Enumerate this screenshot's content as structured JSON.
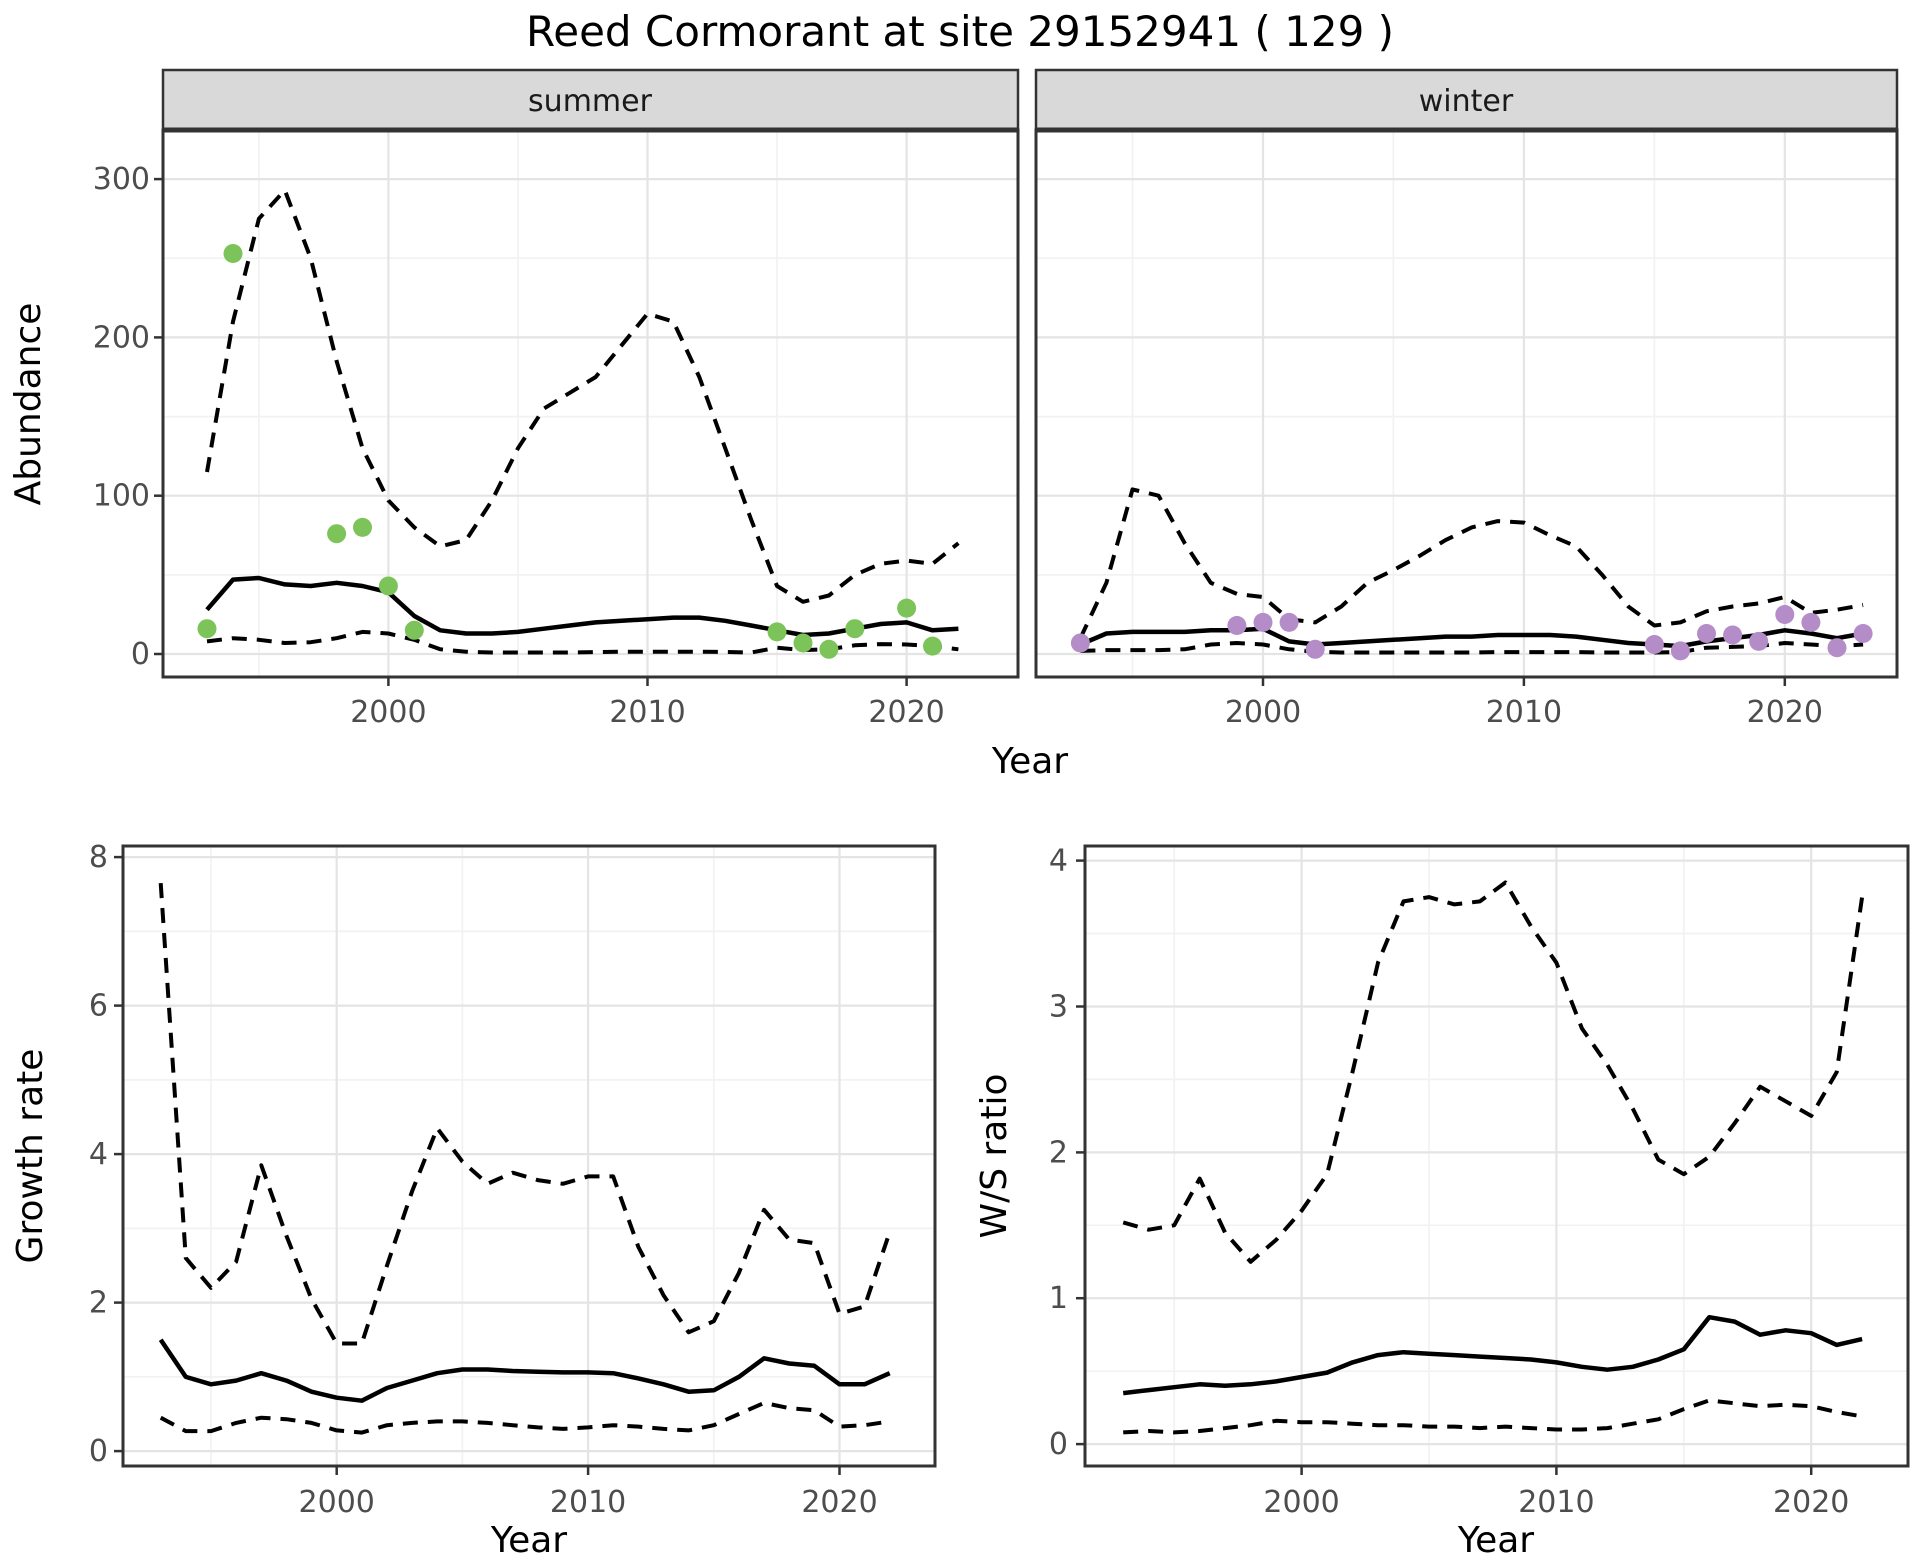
{
  "title": "Reed Cormorant at site 29152941 ( 129 )",
  "colors": {
    "summer_points": "#7cc45a",
    "winter_points": "#b48cc8",
    "line": "#000000",
    "grid_major": "#e4e4e4",
    "grid_minor": "#f2f2f2",
    "strip_bg": "#d9d9d9",
    "border": "#333333",
    "tick_label": "#4d4d4d"
  },
  "chart_data": [
    {
      "id": "abundance_summer",
      "type": "line",
      "facet_label": "summer",
      "ylabel": "Abundance",
      "xlabel": "Year",
      "xlim": [
        1991.3,
        2024.3
      ],
      "ylim": [
        -14.5,
        331
      ],
      "xticks": [
        2000,
        2010,
        2020
      ],
      "xminor": [
        1995,
        2005,
        2015
      ],
      "yticks": [
        0,
        100,
        200,
        300
      ],
      "yminor": [
        50,
        150,
        250
      ],
      "grid": true,
      "legend": "none",
      "x": [
        1993,
        1994,
        1995,
        1996,
        1997,
        1998,
        1999,
        2000,
        2001,
        2002,
        2003,
        2004,
        2005,
        2006,
        2007,
        2008,
        2009,
        2010,
        2011,
        2012,
        2013,
        2014,
        2015,
        2016,
        2017,
        2018,
        2019,
        2020,
        2021,
        2022
      ],
      "series": [
        {
          "name": "mean",
          "style": "solid",
          "values": [
            28,
            47,
            48,
            44,
            43,
            45,
            43,
            39,
            24,
            15,
            13,
            13,
            14,
            16,
            18,
            20,
            21,
            22,
            23,
            23,
            21,
            18,
            15,
            12,
            13,
            16,
            19,
            20,
            15,
            16
          ]
        },
        {
          "name": "upper_ci",
          "style": "dashed",
          "values": [
            115,
            210,
            275,
            293,
            250,
            185,
            130,
            97,
            80,
            68,
            72,
            97,
            130,
            155,
            165,
            175,
            195,
            215,
            210,
            175,
            130,
            85,
            43,
            33,
            37,
            50,
            57,
            59,
            57,
            70
          ]
        },
        {
          "name": "lower_ci",
          "style": "dashed",
          "values": [
            8,
            10,
            9,
            7,
            7.5,
            10,
            14,
            13,
            9,
            3,
            1.5,
            1,
            1,
            1,
            1,
            1.2,
            1.5,
            1.5,
            1.5,
            1.5,
            1.3,
            1,
            4,
            2.5,
            3,
            5.5,
            6.3,
            6,
            5,
            3
          ]
        }
      ],
      "points": {
        "name": "summer observed counts",
        "color": "#7cc45a",
        "data": [
          [
            1993,
            16
          ],
          [
            1994,
            253
          ],
          [
            1998,
            76
          ],
          [
            1999,
            80
          ],
          [
            2000,
            43
          ],
          [
            2001,
            15
          ],
          [
            2015,
            14
          ],
          [
            2016,
            7
          ],
          [
            2017,
            3
          ],
          [
            2018,
            16
          ],
          [
            2020,
            29
          ],
          [
            2021,
            5
          ]
        ]
      }
    },
    {
      "id": "abundance_winter",
      "type": "line",
      "facet_label": "winter",
      "ylabel": "Abundance",
      "xlabel": "Year",
      "xlim": [
        1991.3,
        2024.3
      ],
      "ylim": [
        -14.5,
        331
      ],
      "xticks": [
        2000,
        2010,
        2020
      ],
      "xminor": [
        1995,
        2005,
        2015
      ],
      "yticks": [
        0,
        100,
        200,
        300
      ],
      "yminor": [
        50,
        150,
        250
      ],
      "grid": true,
      "legend": "none",
      "x": [
        1993,
        1994,
        1995,
        1996,
        1997,
        1998,
        1999,
        2000,
        2001,
        2002,
        2003,
        2004,
        2005,
        2006,
        2007,
        2008,
        2009,
        2010,
        2011,
        2012,
        2013,
        2014,
        2015,
        2016,
        2017,
        2018,
        2019,
        2020,
        2021,
        2022,
        2023
      ],
      "series": [
        {
          "name": "mean",
          "style": "solid",
          "values": [
            6,
            13,
            14,
            14,
            14,
            15,
            15,
            16,
            8,
            6,
            7,
            8,
            9,
            10,
            11,
            11,
            12,
            12,
            12,
            11,
            9,
            7,
            6,
            5,
            8,
            10,
            12,
            15,
            13,
            10,
            13
          ]
        },
        {
          "name": "upper_ci",
          "style": "dashed",
          "values": [
            10,
            45,
            104,
            100,
            70,
            45,
            38,
            36,
            22,
            20,
            30,
            45,
            53,
            62,
            72,
            80,
            84,
            83,
            75,
            68,
            50,
            30,
            18,
            20,
            27,
            30,
            32,
            36,
            26,
            28,
            31
          ]
        },
        {
          "name": "lower_ci",
          "style": "dashed",
          "values": [
            2,
            2.5,
            2.5,
            2.5,
            3,
            6,
            7,
            6,
            3,
            1.5,
            1,
            1,
            1,
            1,
            1,
            1,
            1.2,
            1.2,
            1.2,
            1.2,
            1,
            1,
            1,
            1.2,
            4,
            4.5,
            5,
            7,
            6,
            5,
            6
          ]
        }
      ],
      "points": {
        "name": "winter observed counts",
        "color": "#b48cc8",
        "data": [
          [
            1993,
            7
          ],
          [
            1999,
            18
          ],
          [
            2000,
            20
          ],
          [
            2001,
            20
          ],
          [
            2002,
            3
          ],
          [
            2015,
            6
          ],
          [
            2016,
            2
          ],
          [
            2017,
            13
          ],
          [
            2018,
            12
          ],
          [
            2019,
            8
          ],
          [
            2020,
            25
          ],
          [
            2021,
            20
          ],
          [
            2022,
            4
          ],
          [
            2023,
            13
          ]
        ]
      }
    },
    {
      "id": "growth_rate",
      "type": "line",
      "facet_label": "",
      "ylabel": "Growth rate",
      "xlabel": "Year",
      "xlim": [
        1991.5,
        2023.8
      ],
      "ylim": [
        -0.2,
        8.15
      ],
      "xticks": [
        2000,
        2010,
        2020
      ],
      "xminor": [
        1995,
        2005,
        2015
      ],
      "yticks": [
        0,
        2,
        4,
        6,
        8
      ],
      "yminor": [
        1,
        3,
        5,
        7
      ],
      "grid": true,
      "legend": "none",
      "x": [
        1993,
        1994,
        1995,
        1996,
        1997,
        1998,
        1999,
        2000,
        2001,
        2002,
        2003,
        2004,
        2005,
        2006,
        2007,
        2008,
        2009,
        2010,
        2011,
        2012,
        2013,
        2014,
        2015,
        2016,
        2017,
        2018,
        2019,
        2020,
        2021,
        2022
      ],
      "series": [
        {
          "name": "mean",
          "style": "solid",
          "values": [
            1.5,
            1.0,
            0.9,
            0.95,
            1.05,
            0.95,
            0.8,
            0.72,
            0.68,
            0.85,
            0.95,
            1.05,
            1.1,
            1.1,
            1.08,
            1.07,
            1.06,
            1.06,
            1.05,
            0.98,
            0.9,
            0.8,
            0.82,
            1.0,
            1.25,
            1.18,
            1.15,
            0.9,
            0.9,
            1.05
          ]
        },
        {
          "name": "upper_ci",
          "style": "dashed",
          "values": [
            7.65,
            2.6,
            2.2,
            2.55,
            3.85,
            2.9,
            2.05,
            1.45,
            1.45,
            2.5,
            3.5,
            4.35,
            3.9,
            3.6,
            3.75,
            3.65,
            3.6,
            3.7,
            3.7,
            2.75,
            2.1,
            1.6,
            1.75,
            2.4,
            3.25,
            2.85,
            2.8,
            1.85,
            1.95,
            2.95
          ]
        },
        {
          "name": "lower_ci",
          "style": "dashed",
          "values": [
            0.45,
            0.27,
            0.27,
            0.38,
            0.45,
            0.43,
            0.38,
            0.28,
            0.25,
            0.35,
            0.38,
            0.4,
            0.4,
            0.38,
            0.35,
            0.32,
            0.3,
            0.32,
            0.35,
            0.33,
            0.3,
            0.28,
            0.35,
            0.5,
            0.65,
            0.58,
            0.55,
            0.33,
            0.35,
            0.4
          ]
        }
      ]
    },
    {
      "id": "ws_ratio",
      "type": "line",
      "facet_label": "",
      "ylabel": "W/S ratio",
      "xlabel": "Year",
      "xlim": [
        1991.5,
        2023.8
      ],
      "ylim": [
        -0.15,
        4.1
      ],
      "xticks": [
        2000,
        2010,
        2020
      ],
      "xminor": [
        1995,
        2005,
        2015
      ],
      "yticks": [
        0,
        1,
        2,
        3,
        4
      ],
      "yminor": [
        0.5,
        1.5,
        2.5,
        3.5
      ],
      "grid": true,
      "legend": "none",
      "x": [
        1993,
        1994,
        1995,
        1996,
        1997,
        1998,
        1999,
        2000,
        2001,
        2002,
        2003,
        2004,
        2005,
        2006,
        2007,
        2008,
        2009,
        2010,
        2011,
        2012,
        2013,
        2014,
        2015,
        2016,
        2017,
        2018,
        2019,
        2020,
        2021,
        2022
      ],
      "series": [
        {
          "name": "mean",
          "style": "solid",
          "values": [
            0.35,
            0.37,
            0.39,
            0.41,
            0.4,
            0.41,
            0.43,
            0.46,
            0.49,
            0.56,
            0.61,
            0.63,
            0.62,
            0.61,
            0.6,
            0.59,
            0.58,
            0.56,
            0.53,
            0.51,
            0.53,
            0.58,
            0.65,
            0.87,
            0.84,
            0.75,
            0.78,
            0.76,
            0.68,
            0.72
          ]
        },
        {
          "name": "upper_ci",
          "style": "dashed",
          "values": [
            1.52,
            1.47,
            1.5,
            1.82,
            1.45,
            1.25,
            1.4,
            1.6,
            1.85,
            2.55,
            3.3,
            3.72,
            3.75,
            3.7,
            3.72,
            3.85,
            3.55,
            3.3,
            2.85,
            2.6,
            2.3,
            1.95,
            1.85,
            1.97,
            2.2,
            2.45,
            2.35,
            2.25,
            2.55,
            3.75
          ]
        },
        {
          "name": "lower_ci",
          "style": "dashed",
          "values": [
            0.08,
            0.09,
            0.08,
            0.09,
            0.11,
            0.13,
            0.16,
            0.15,
            0.15,
            0.14,
            0.13,
            0.13,
            0.12,
            0.12,
            0.11,
            0.12,
            0.11,
            0.1,
            0.1,
            0.11,
            0.14,
            0.17,
            0.24,
            0.3,
            0.28,
            0.26,
            0.27,
            0.26,
            0.22,
            0.19
          ]
        }
      ]
    }
  ]
}
